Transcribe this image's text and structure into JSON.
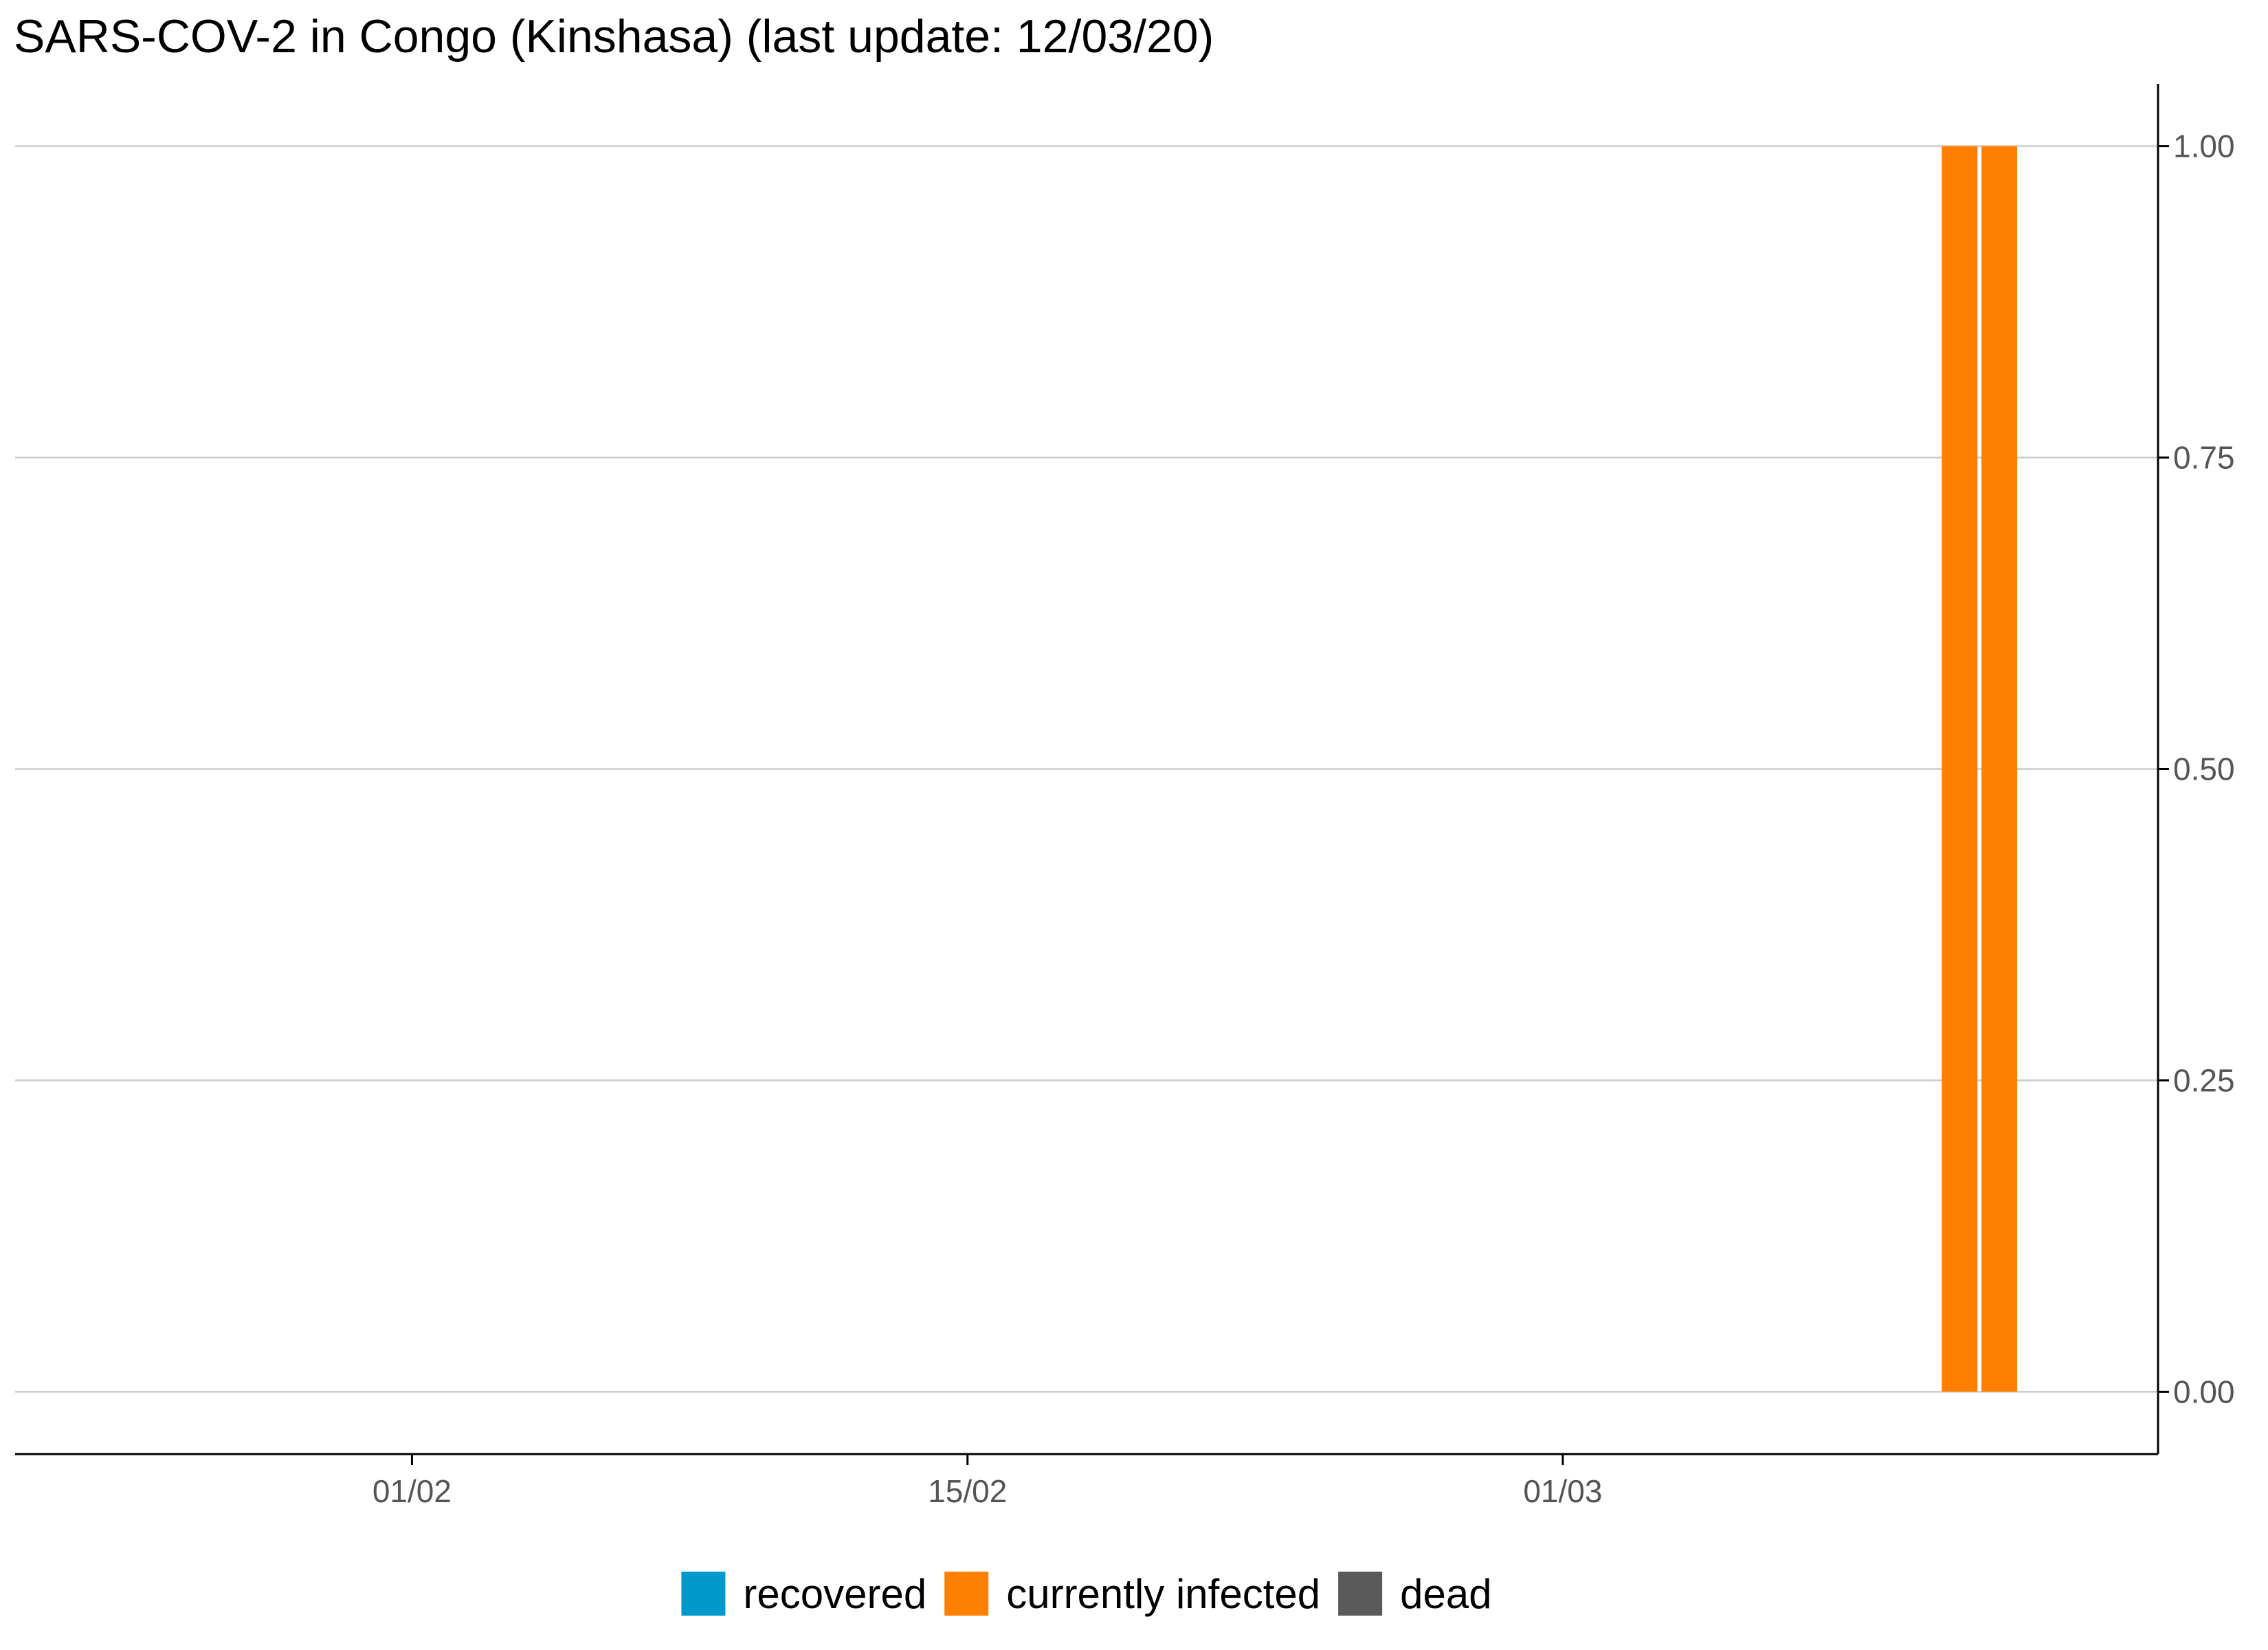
{
  "chart_data": {
    "type": "bar",
    "stacked": true,
    "title": "SARS-COV-2 in Congo (Kinshasa) (last update: 12/03/20)",
    "xlabel": "",
    "ylabel": "",
    "x_axis": {
      "type": "date",
      "range": [
        "2020-01-22",
        "2020-03-16"
      ],
      "ticks": [
        {
          "date": "2020-02-01",
          "label": "01/02"
        },
        {
          "date": "2020-02-15",
          "label": "15/02"
        },
        {
          "date": "2020-03-01",
          "label": "01/03"
        }
      ]
    },
    "y_axis": {
      "position": "right",
      "ylim": [
        -0.05,
        1.05
      ],
      "ticks": [
        {
          "value": 0,
          "label": "0.00"
        },
        {
          "value": 0.25,
          "label": "0.25"
        },
        {
          "value": 0.5,
          "label": "0.50"
        },
        {
          "value": 0.75,
          "label": "0.75"
        },
        {
          "value": 1,
          "label": "1.00"
        }
      ]
    },
    "grid": true,
    "legend": "bottom",
    "dates": [
      "2020-03-11",
      "2020-03-12"
    ],
    "series": [
      {
        "name": "recovered",
        "color": "#0099cc",
        "values": [
          0,
          0
        ]
      },
      {
        "name": "currently infected",
        "color": "#ff8000",
        "values": [
          1,
          1
        ]
      },
      {
        "name": "dead",
        "color": "#5a5a5a",
        "values": [
          0,
          0
        ]
      }
    ]
  }
}
